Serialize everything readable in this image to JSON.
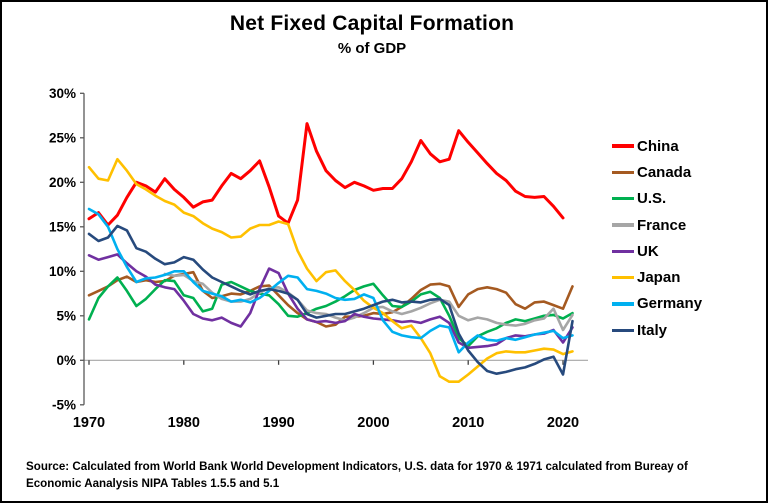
{
  "header": {
    "title": "Net Fixed Capital Formation",
    "subtitle": "% of GDP"
  },
  "source": {
    "text": "Source:  Calculated from World Bank World Development Indicators, U.S. data for 1970 & 1971 calculated from Bureay of Economic Aanalysis NIPA Tables 1.5.5 and 5.1"
  },
  "chart_data": {
    "type": "line",
    "title": "Net Fixed Capital Formation",
    "subtitle": "% of GDP",
    "xlabel": "",
    "ylabel": "",
    "x_range": [
      1970,
      2021
    ],
    "ylim": [
      -5,
      30
    ],
    "grid": "zero-line-only",
    "legend_position": "right",
    "x_ticks": [
      1970,
      1980,
      1990,
      2000,
      2010,
      2020
    ],
    "x_tick_labels": [
      "1970",
      "1980",
      "1990",
      "2000",
      "2010",
      "2020"
    ],
    "y_ticks": [
      30,
      25,
      20,
      15,
      10,
      5,
      0,
      -5
    ],
    "y_tick_labels": [
      "30%",
      "25%",
      "20%",
      "15%",
      "10%",
      "5%",
      "0%",
      "-5%"
    ],
    "series": [
      {
        "name": "China",
        "color": "#FF0000",
        "width": 3,
        "start_year": 1970,
        "values": [
          15.9,
          16.6,
          15.2,
          16.3,
          18.3,
          20.0,
          19.6,
          18.9,
          20.4,
          19.2,
          18.3,
          17.2,
          17.8,
          18.0,
          19.6,
          21.0,
          20.4,
          21.3,
          22.4,
          19.5,
          16.2,
          15.4,
          18.0,
          26.6,
          23.5,
          21.3,
          20.2,
          19.4,
          20.0,
          19.6,
          19.1,
          19.3,
          19.3,
          20.4,
          22.3,
          24.7,
          23.2,
          22.3,
          22.6,
          25.8,
          24.5,
          23.3,
          22.1,
          21.0,
          20.2,
          19.0,
          18.4,
          18.3,
          18.4,
          17.3,
          16.0
        ]
      },
      {
        "name": "Canada",
        "color": "#A55A21",
        "width": 2.6,
        "start_year": 1970,
        "values": [
          7.3,
          7.8,
          8.3,
          9.0,
          9.4,
          8.8,
          9.0,
          8.8,
          8.9,
          9.5,
          9.7,
          9.9,
          7.8,
          7.0,
          7.2,
          7.5,
          7.4,
          7.8,
          8.3,
          8.4,
          7.3,
          6.2,
          5.3,
          4.6,
          4.3,
          3.8,
          4.0,
          4.9,
          4.9,
          5.0,
          5.3,
          5.2,
          5.4,
          6.0,
          6.9,
          7.9,
          8.5,
          8.6,
          8.3,
          6.0,
          7.4,
          8.0,
          8.2,
          8.0,
          7.6,
          6.3,
          5.8,
          6.5,
          6.6,
          6.2,
          5.8,
          8.3
        ]
      },
      {
        "name": "U.S.",
        "color": "#00B050",
        "width": 2.6,
        "start_year": 1970,
        "values": [
          4.6,
          7.0,
          8.3,
          9.3,
          7.8,
          6.1,
          6.9,
          8.0,
          9.0,
          8.9,
          7.3,
          7.0,
          5.5,
          5.8,
          8.5,
          8.8,
          8.3,
          7.8,
          7.5,
          7.3,
          6.3,
          5.0,
          4.9,
          5.3,
          5.8,
          6.1,
          6.6,
          7.2,
          7.9,
          8.3,
          8.6,
          7.3,
          6.1,
          6.0,
          6.6,
          7.4,
          7.7,
          7.0,
          5.0,
          2.5,
          1.6,
          2.7,
          3.2,
          3.6,
          4.2,
          4.6,
          4.4,
          4.7,
          5.0,
          5.1,
          4.7,
          5.3
        ]
      },
      {
        "name": "France",
        "color": "#A6A6A6",
        "width": 2.6,
        "start_year": 1978,
        "values": [
          9.7,
          9.5,
          9.6,
          8.9,
          8.6,
          7.6,
          6.9,
          6.6,
          6.6,
          6.9,
          7.6,
          8.1,
          8.2,
          7.6,
          6.8,
          5.6,
          5.3,
          5.2,
          4.8,
          4.5,
          4.8,
          5.3,
          5.9,
          6.0,
          5.5,
          5.2,
          5.5,
          5.9,
          6.4,
          6.8,
          6.6,
          5.0,
          4.5,
          4.8,
          4.6,
          4.2,
          4.0,
          3.9,
          4.1,
          4.5,
          4.7,
          5.8,
          3.4,
          5.1
        ]
      },
      {
        "name": "UK",
        "color": "#7030A0",
        "width": 2.6,
        "start_year": 1970,
        "values": [
          11.8,
          11.3,
          11.6,
          11.9,
          10.9,
          10.0,
          9.4,
          8.5,
          8.2,
          8.0,
          6.7,
          5.2,
          4.7,
          4.5,
          4.8,
          4.2,
          3.8,
          5.3,
          8.0,
          10.3,
          9.8,
          7.5,
          5.8,
          4.6,
          4.3,
          4.4,
          4.2,
          4.4,
          5.2,
          4.9,
          4.7,
          4.6,
          4.5,
          4.3,
          4.4,
          4.2,
          4.6,
          4.9,
          4.2,
          2.0,
          1.4,
          1.5,
          1.6,
          1.8,
          2.5,
          2.8,
          2.7,
          2.9,
          3.0,
          3.4,
          2.0,
          3.7
        ]
      },
      {
        "name": "Japan",
        "color": "#FFC000",
        "width": 2.6,
        "start_year": 1970,
        "values": [
          21.7,
          20.4,
          20.2,
          22.6,
          21.3,
          19.8,
          19.2,
          18.5,
          17.9,
          17.5,
          16.6,
          16.2,
          15.4,
          14.8,
          14.4,
          13.8,
          13.9,
          14.8,
          15.2,
          15.2,
          15.6,
          15.3,
          12.3,
          10.3,
          8.9,
          9.9,
          10.1,
          8.9,
          7.9,
          6.7,
          5.9,
          5.3,
          4.4,
          3.6,
          3.9,
          2.5,
          0.8,
          -1.8,
          -2.4,
          -2.4,
          -1.6,
          -0.7,
          0.2,
          0.8,
          1.0,
          0.9,
          0.9,
          1.1,
          1.3,
          1.2,
          0.7,
          1.0
        ]
      },
      {
        "name": "Germany",
        "color": "#00B0F0",
        "width": 2.6,
        "start_year": 1970,
        "values": [
          17.0,
          16.4,
          15.0,
          12.5,
          10.5,
          8.8,
          9.2,
          9.3,
          9.6,
          10.0,
          10.0,
          8.8,
          7.8,
          7.5,
          7.2,
          6.6,
          6.8,
          6.5,
          7.0,
          7.8,
          8.7,
          9.5,
          9.3,
          8.0,
          7.8,
          7.5,
          7.0,
          6.8,
          6.9,
          7.4,
          7.0,
          4.5,
          3.2,
          2.8,
          2.6,
          2.5,
          3.3,
          3.9,
          3.7,
          0.9,
          2.0,
          2.8,
          2.3,
          2.2,
          2.5,
          2.3,
          2.6,
          2.9,
          3.1,
          3.3,
          2.5,
          2.8
        ]
      },
      {
        "name": "Italy",
        "color": "#274A7D",
        "width": 2.6,
        "start_year": 1970,
        "values": [
          14.2,
          13.4,
          13.8,
          15.1,
          14.6,
          12.6,
          12.2,
          11.4,
          10.8,
          11.0,
          11.6,
          11.3,
          10.2,
          9.3,
          8.8,
          8.3,
          7.8,
          7.4,
          7.8,
          8.0,
          7.8,
          7.5,
          6.8,
          5.2,
          4.8,
          5.0,
          5.2,
          5.2,
          5.5,
          5.8,
          6.2,
          6.6,
          6.8,
          6.5,
          6.6,
          6.5,
          6.8,
          6.9,
          6.2,
          3.0,
          1.1,
          -0.2,
          -1.2,
          -1.5,
          -1.3,
          -1.0,
          -0.8,
          -0.4,
          0.1,
          0.4,
          -1.6,
          4.4
        ]
      }
    ],
    "axis_colors": {
      "axis_line": "#595959",
      "zero_line": "#A6A6A6",
      "tick": "#404040"
    }
  }
}
